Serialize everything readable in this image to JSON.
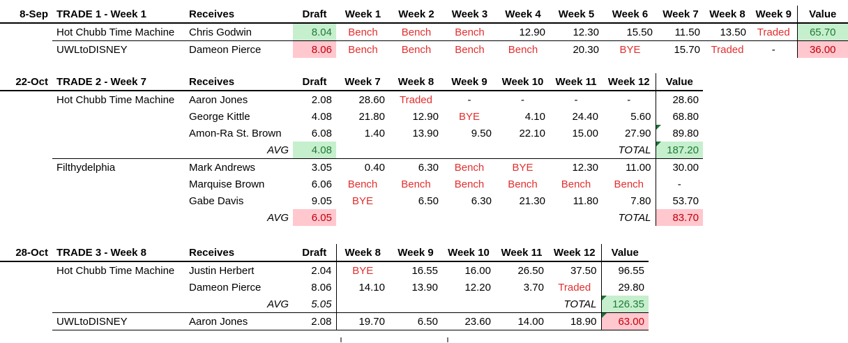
{
  "colors": {
    "good_bg": "#c6efce",
    "good_text": "#1e7a34",
    "bad_bg": "#ffc7ce",
    "bad_text": "#bf000a",
    "red_text": "#e22e2e",
    "flag": "#1e6f38",
    "border": "#000000"
  },
  "tables": [
    {
      "date": "8-Sep",
      "title": "TRADE 1 - Week 1",
      "receives_label": "Receives",
      "headers": [
        "Draft",
        "Week 1",
        "Week 2",
        "Week 3",
        "Week 4",
        "Week 5",
        "Week 6",
        "Week 7",
        "Week 8",
        "Week 9",
        "Value"
      ],
      "rows": [
        {
          "team": "Hot Chubb Time Machine",
          "name": "Chris Godwin",
          "draft": {
            "t": "8.04",
            "s": "good"
          },
          "weeks": [
            {
              "t": "Bench",
              "s": "red"
            },
            {
              "t": "Bench",
              "s": "red"
            },
            {
              "t": "Bench",
              "s": "red"
            },
            {
              "t": "12.90"
            },
            {
              "t": "12.30"
            },
            {
              "t": "15.50"
            },
            {
              "t": "11.50"
            },
            {
              "t": "13.50"
            },
            {
              "t": "Traded",
              "s": "red"
            }
          ],
          "value": {
            "t": "65.70",
            "s": "good"
          },
          "sep": true
        },
        {
          "team": "UWLtoDISNEY",
          "name": "Dameon Pierce",
          "draft": {
            "t": "8.06",
            "s": "bad"
          },
          "weeks": [
            {
              "t": "Bench",
              "s": "red"
            },
            {
              "t": "Bench",
              "s": "red"
            },
            {
              "t": "Bench",
              "s": "red"
            },
            {
              "t": "Bench",
              "s": "red"
            },
            {
              "t": "20.30"
            },
            {
              "t": "BYE",
              "s": "red"
            },
            {
              "t": "15.70"
            },
            {
              "t": "Traded",
              "s": "red"
            },
            {
              "t": "-",
              "s": "dash"
            }
          ],
          "value": {
            "t": "36.00",
            "s": "bad"
          }
        }
      ]
    },
    {
      "date": "22-Oct",
      "title": "TRADE 2 - Week 7",
      "receives_label": "Receives",
      "headers": [
        "Draft",
        "Week 7",
        "Week 8",
        "Week 9",
        "Week 10",
        "Week 11",
        "Week 12",
        "Value"
      ],
      "rows": [
        {
          "team": "Hot Chubb Time Machine",
          "name": "Aaron Jones",
          "draft": {
            "t": "2.08"
          },
          "weeks": [
            {
              "t": "28.60"
            },
            {
              "t": "Traded",
              "s": "red"
            },
            {
              "t": "-",
              "s": "dash"
            },
            {
              "t": "-",
              "s": "dash"
            },
            {
              "t": "-",
              "s": "dash"
            },
            {
              "t": "-",
              "s": "dash"
            }
          ],
          "value": {
            "t": "28.60"
          }
        },
        {
          "team": "",
          "name": "George Kittle",
          "draft": {
            "t": "4.08"
          },
          "weeks": [
            {
              "t": "21.80"
            },
            {
              "t": "12.90"
            },
            {
              "t": "BYE",
              "s": "red"
            },
            {
              "t": "4.10"
            },
            {
              "t": "24.40"
            },
            {
              "t": "5.60"
            }
          ],
          "value": {
            "t": "68.80"
          }
        },
        {
          "team": "",
          "name": "Amon-Ra St. Brown",
          "draft": {
            "t": "6.08"
          },
          "weeks": [
            {
              "t": "1.40"
            },
            {
              "t": "13.90"
            },
            {
              "t": "9.50"
            },
            {
              "t": "22.10"
            },
            {
              "t": "15.00"
            },
            {
              "t": "27.90"
            }
          ],
          "value": {
            "t": "89.80",
            "tri": true
          }
        },
        {
          "team": "",
          "name": "AVG",
          "ns": "label",
          "draft": {
            "t": "4.08",
            "s": "good"
          },
          "weeks": [
            {
              "t": ""
            },
            {
              "t": ""
            },
            {
              "t": ""
            },
            {
              "t": ""
            },
            {
              "t": ""
            },
            {
              "t": "TOTAL",
              "s": "label"
            }
          ],
          "value": {
            "t": "187.20",
            "s": "good",
            "tri": true
          },
          "sep": true
        },
        {
          "team": "Filthydelphia",
          "name": "Mark Andrews",
          "draft": {
            "t": "3.05"
          },
          "weeks": [
            {
              "t": "0.40"
            },
            {
              "t": "6.30"
            },
            {
              "t": "Bench",
              "s": "red"
            },
            {
              "t": "BYE",
              "s": "red"
            },
            {
              "t": "12.30"
            },
            {
              "t": "11.00"
            }
          ],
          "value": {
            "t": "30.00"
          }
        },
        {
          "team": "",
          "name": "Marquise Brown",
          "draft": {
            "t": "6.06"
          },
          "weeks": [
            {
              "t": "Bench",
              "s": "red"
            },
            {
              "t": "Bench",
              "s": "red"
            },
            {
              "t": "Bench",
              "s": "red"
            },
            {
              "t": "Bench",
              "s": "red"
            },
            {
              "t": "Bench",
              "s": "red"
            },
            {
              "t": "Bench",
              "s": "red"
            }
          ],
          "value": {
            "t": "-",
            "s": "dash"
          }
        },
        {
          "team": "",
          "name": "Gabe Davis",
          "draft": {
            "t": "9.05"
          },
          "weeks": [
            {
              "t": "BYE",
              "s": "red"
            },
            {
              "t": "6.50"
            },
            {
              "t": "6.30"
            },
            {
              "t": "21.30"
            },
            {
              "t": "11.80"
            },
            {
              "t": "7.80"
            }
          ],
          "value": {
            "t": "53.70"
          }
        },
        {
          "team": "",
          "name": "AVG",
          "ns": "label",
          "draft": {
            "t": "6.05",
            "s": "bad"
          },
          "weeks": [
            {
              "t": ""
            },
            {
              "t": ""
            },
            {
              "t": ""
            },
            {
              "t": ""
            },
            {
              "t": ""
            },
            {
              "t": "TOTAL",
              "s": "label"
            }
          ],
          "value": {
            "t": "83.70",
            "s": "bad"
          }
        }
      ]
    },
    {
      "date": "28-Oct",
      "title": "TRADE 3 - Week 8",
      "receives_label": "Receives",
      "headers": [
        "Draft",
        "Week 8",
        "Week 9",
        "Week 10",
        "Week 11",
        "Week 12",
        "Value"
      ],
      "rows": [
        {
          "team": "Hot Chubb Time Machine",
          "name": "Justin Herbert",
          "draft": {
            "t": "2.04"
          },
          "weeks": [
            {
              "t": "BYE",
              "s": "red"
            },
            {
              "t": "16.55"
            },
            {
              "t": "16.00"
            },
            {
              "t": "26.50"
            },
            {
              "t": "37.50"
            }
          ],
          "value": {
            "t": "96.55"
          }
        },
        {
          "team": "",
          "name": "Dameon Pierce",
          "draft": {
            "t": "8.06"
          },
          "weeks": [
            {
              "t": "14.10"
            },
            {
              "t": "13.90"
            },
            {
              "t": "12.20"
            },
            {
              "t": "3.70"
            },
            {
              "t": "Traded",
              "s": "red"
            }
          ],
          "value": {
            "t": "29.80"
          }
        },
        {
          "team": "",
          "name": "AVG",
          "ns": "label",
          "draft": {
            "t": "5.05",
            "s": "ital"
          },
          "weeks": [
            {
              "t": ""
            },
            {
              "t": ""
            },
            {
              "t": ""
            },
            {
              "t": ""
            },
            {
              "t": "TOTAL",
              "s": "label"
            }
          ],
          "value": {
            "t": "126.35",
            "s": "good",
            "tri": true
          },
          "sep": true
        },
        {
          "team": "UWLtoDISNEY",
          "name": "Aaron Jones",
          "draft": {
            "t": "2.08"
          },
          "weeks": [
            {
              "t": "19.70"
            },
            {
              "t": "6.50"
            },
            {
              "t": "23.60"
            },
            {
              "t": "14.00"
            },
            {
              "t": "18.90"
            }
          ],
          "value": {
            "t": "63.00",
            "s": "bad",
            "tri": true
          },
          "sep": true
        }
      ]
    }
  ]
}
